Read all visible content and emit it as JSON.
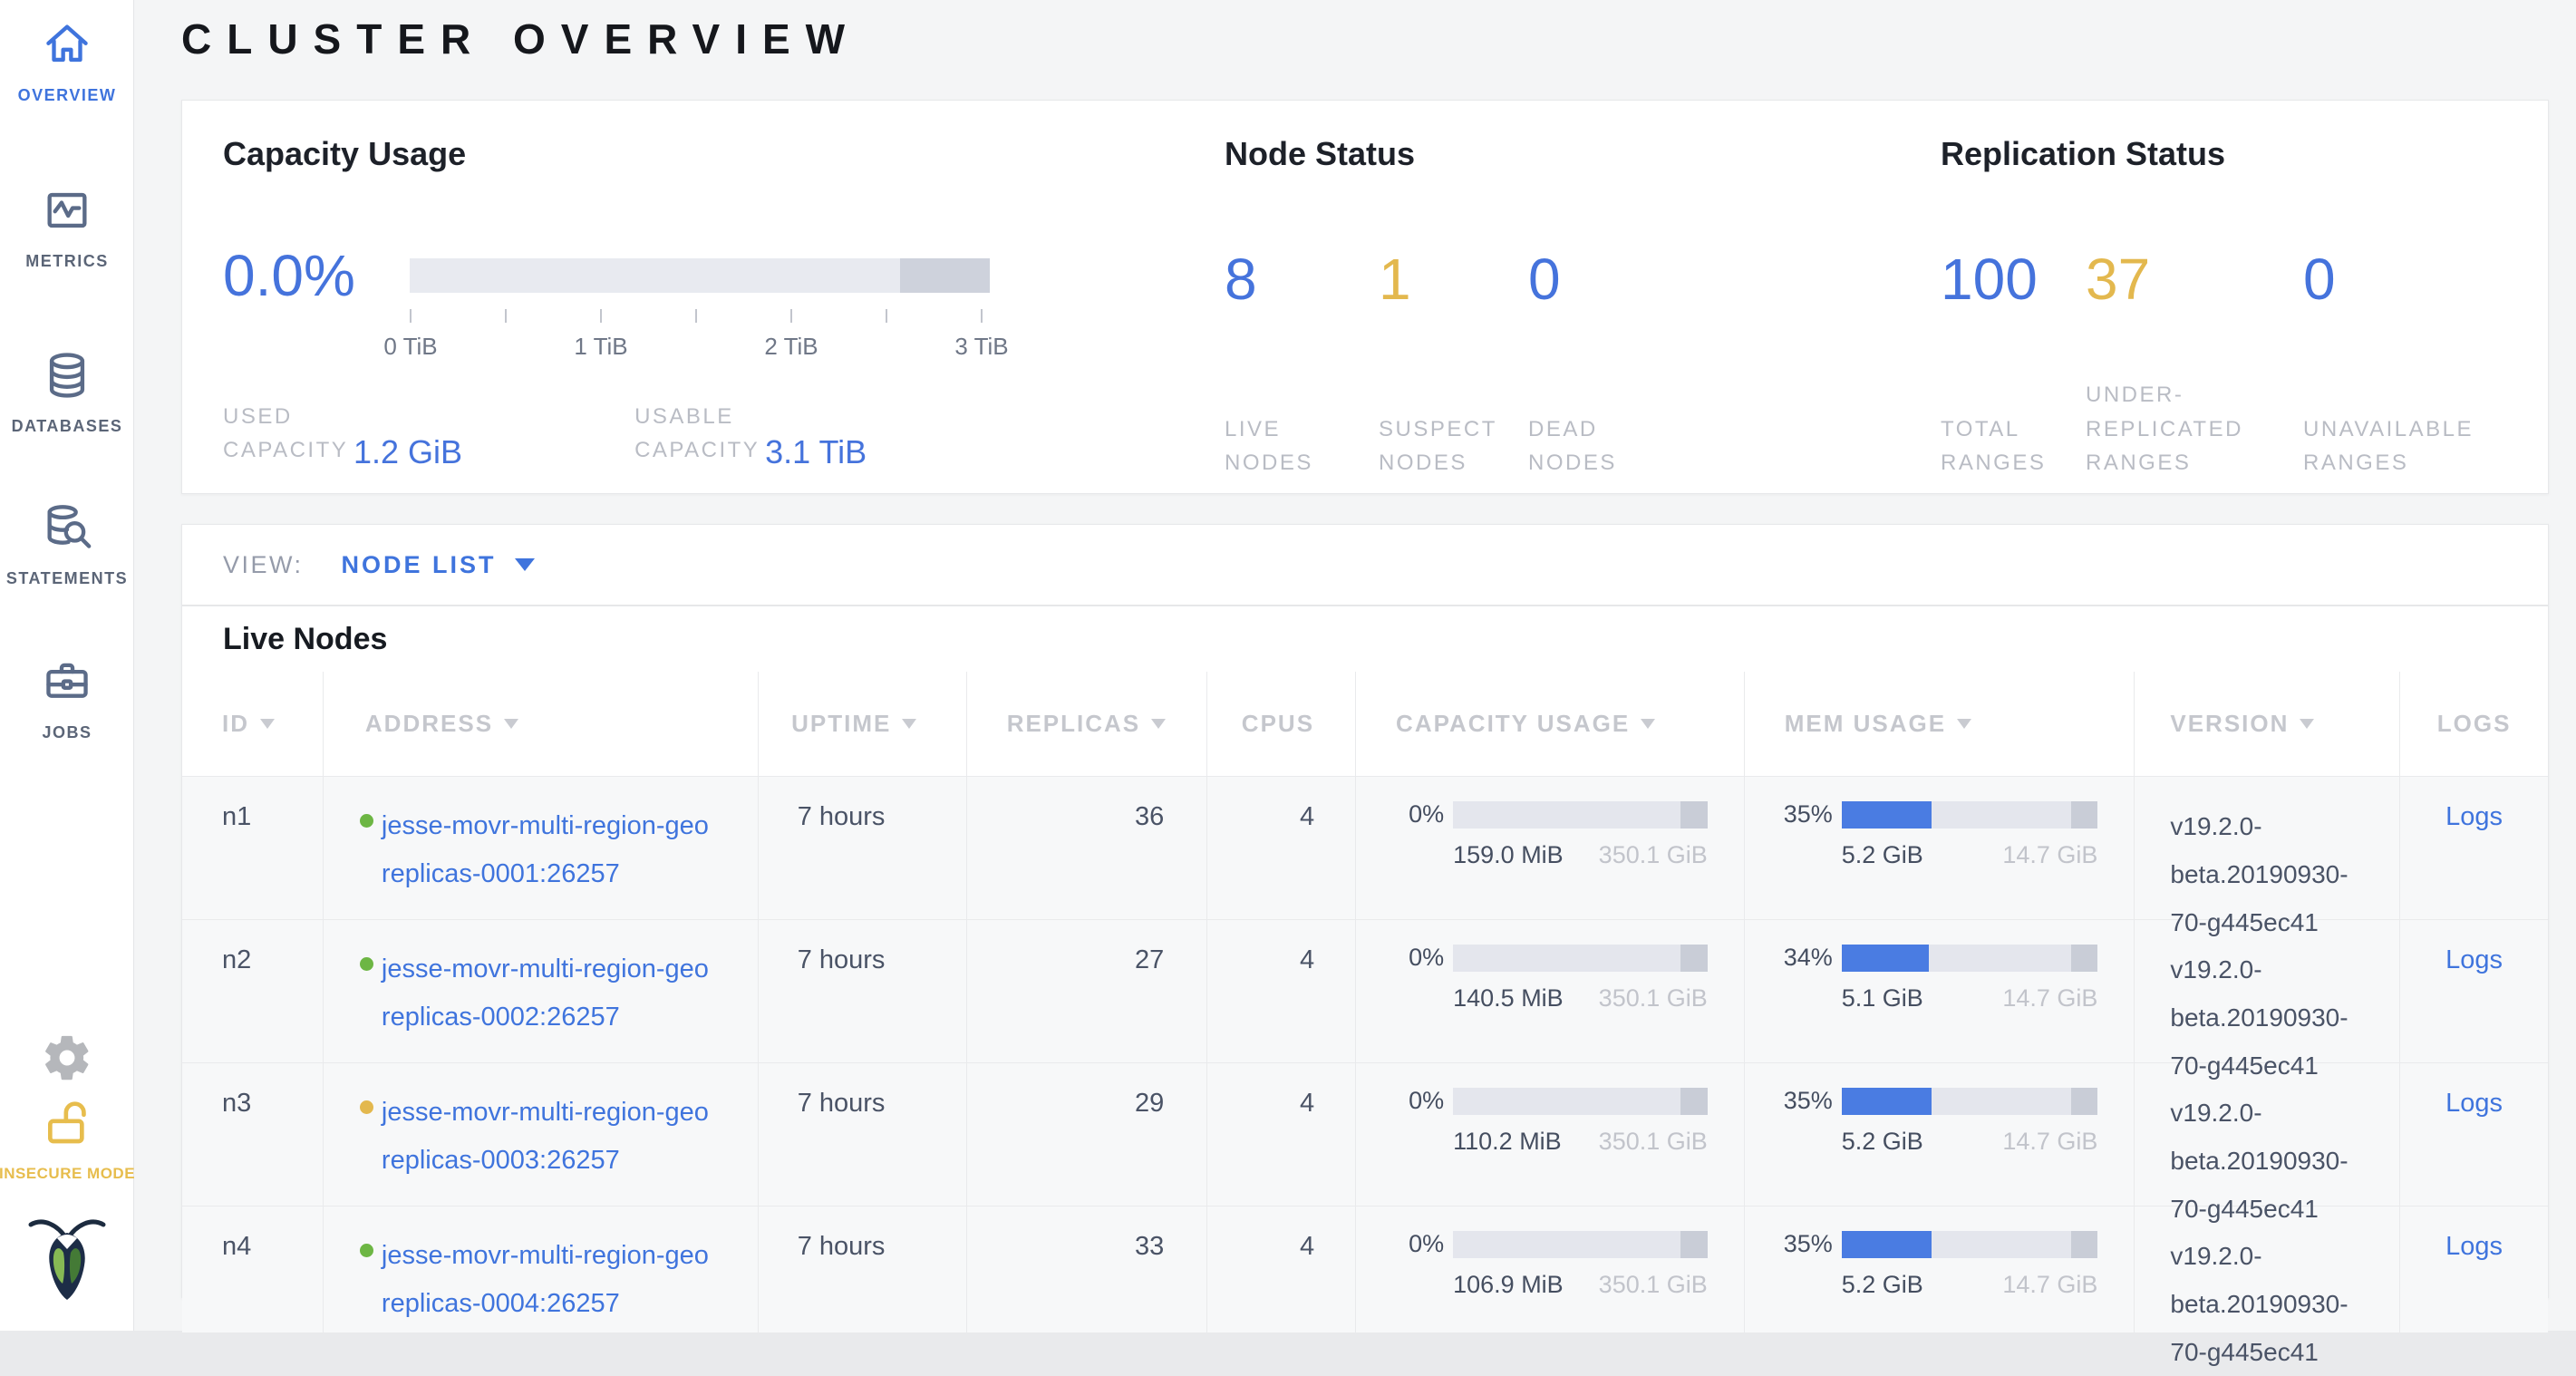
{
  "colors": {
    "blue": "#4573dc",
    "yellow": "#e3b84e",
    "green": "#6db644"
  },
  "sidebar": {
    "items": [
      {
        "label": "OVERVIEW"
      },
      {
        "label": "METRICS"
      },
      {
        "label": "DATABASES"
      },
      {
        "label": "STATEMENTS"
      },
      {
        "label": "JOBS"
      }
    ],
    "insecure_label": "INSECURE MODE"
  },
  "page": {
    "title": "CLUSTER OVERVIEW"
  },
  "summary": {
    "capacity": {
      "title": "Capacity Usage",
      "percent": "0.0%",
      "tick_labels": [
        "0 TiB",
        "1 TiB",
        "2 TiB",
        "3 TiB"
      ],
      "used_label": "USED CAPACITY",
      "used_value": "1.2 GiB",
      "usable_label": "USABLE CAPACITY",
      "usable_value": "3.1 TiB"
    },
    "node_status": {
      "title": "Node Status",
      "stats": [
        {
          "value": "8",
          "label": "LIVE NODES",
          "color": "blue"
        },
        {
          "value": "1",
          "label": "SUSPECT NODES",
          "color": "yellow"
        },
        {
          "value": "0",
          "label": "DEAD NODES",
          "color": "blue"
        }
      ]
    },
    "replication_status": {
      "title": "Replication Status",
      "stats": [
        {
          "value": "100",
          "label": "TOTAL RANGES",
          "color": "blue"
        },
        {
          "value": "37",
          "label": "UNDER-REPLICATED RANGES",
          "color": "yellow"
        },
        {
          "value": "0",
          "label": "UNAVAILABLE RANGES",
          "color": "blue"
        }
      ]
    }
  },
  "view_bar": {
    "label": "VIEW:",
    "selected": "NODE LIST"
  },
  "nodes_table": {
    "section_title": "Live Nodes",
    "columns": [
      {
        "label": "ID"
      },
      {
        "label": "ADDRESS"
      },
      {
        "label": "UPTIME"
      },
      {
        "label": "REPLICAS"
      },
      {
        "label": "CPUS"
      },
      {
        "label": "CAPACITY USAGE"
      },
      {
        "label": "MEM USAGE"
      },
      {
        "label": "VERSION"
      },
      {
        "label": "LOGS"
      }
    ],
    "rows": [
      {
        "id": "n1",
        "dot": "green",
        "address": "jesse-movr-multi-region-geo\nreplicas-0001:26257",
        "uptime": "7 hours",
        "replicas": "36",
        "cpus": "4",
        "capacity": {
          "percent": "0%",
          "fill": 0,
          "used": "159.0 MiB",
          "total": "350.1 GiB"
        },
        "memory": {
          "percent": "35%",
          "fill": 35,
          "used": "5.2 GiB",
          "total": "14.7 GiB"
        },
        "version": "v19.2.0-\nbeta.20190930-\n70-g445ec41",
        "logs": "Logs"
      },
      {
        "id": "n2",
        "dot": "green",
        "address": "jesse-movr-multi-region-geo\nreplicas-0002:26257",
        "uptime": "7 hours",
        "replicas": "27",
        "cpus": "4",
        "capacity": {
          "percent": "0%",
          "fill": 0,
          "used": "140.5 MiB",
          "total": "350.1 GiB"
        },
        "memory": {
          "percent": "34%",
          "fill": 34,
          "used": "5.1 GiB",
          "total": "14.7 GiB"
        },
        "version": "v19.2.0-\nbeta.20190930-\n70-g445ec41",
        "logs": "Logs"
      },
      {
        "id": "n3",
        "dot": "yellow",
        "address": "jesse-movr-multi-region-geo\nreplicas-0003:26257",
        "uptime": "7 hours",
        "replicas": "29",
        "cpus": "4",
        "capacity": {
          "percent": "0%",
          "fill": 0,
          "used": "110.2 MiB",
          "total": "350.1 GiB"
        },
        "memory": {
          "percent": "35%",
          "fill": 35,
          "used": "5.2 GiB",
          "total": "14.7 GiB"
        },
        "version": "v19.2.0-\nbeta.20190930-\n70-g445ec41",
        "logs": "Logs"
      },
      {
        "id": "n4",
        "dot": "green",
        "address": "jesse-movr-multi-region-geo\nreplicas-0004:26257",
        "uptime": "7 hours",
        "replicas": "33",
        "cpus": "4",
        "capacity": {
          "percent": "0%",
          "fill": 0,
          "used": "106.9 MiB",
          "total": "350.1 GiB"
        },
        "memory": {
          "percent": "35%",
          "fill": 35,
          "used": "5.2 GiB",
          "total": "14.7 GiB"
        },
        "version": "v19.2.0-\nbeta.20190930-\n70-g445ec41",
        "logs": "Logs"
      }
    ]
  }
}
